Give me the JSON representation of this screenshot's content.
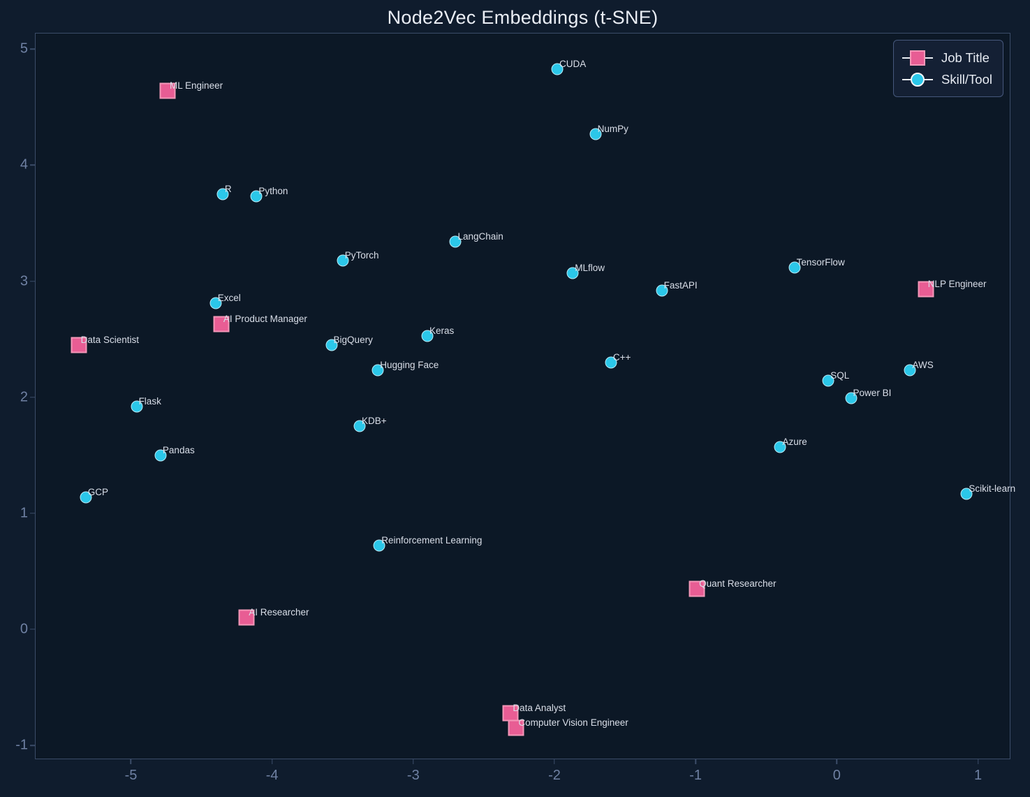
{
  "figure": {
    "title": "Node2Vec Embeddings (t-SNE)"
  },
  "legend": {
    "items": [
      {
        "label": "Job Title",
        "marker": "square-marker-icon"
      },
      {
        "label": "Skill/Tool",
        "marker": "circle-marker-icon"
      }
    ]
  },
  "colors": {
    "figure_background": "#0f1c2d",
    "axes_background": "#0c1826",
    "spine": "#3b4c68",
    "tick_label": "#6f81a3",
    "point_label": "#d9dee8",
    "job_title_fill": "#e85d94",
    "job_title_edge": "#f59ab9",
    "skill_fill": "#2bc7e9",
    "skill_edge": "#dff4fa"
  },
  "chart_data": {
    "type": "scatter",
    "title": "Node2Vec Embeddings (t-SNE)",
    "xlabel": "",
    "ylabel": "",
    "xlim": [
      -5.68,
      1.23
    ],
    "ylim": [
      -1.12,
      5.14
    ],
    "x_ticks": [
      -5,
      -4,
      -3,
      -2,
      -1,
      0,
      1
    ],
    "y_ticks": [
      -1,
      0,
      1,
      2,
      3,
      4,
      5
    ],
    "grid": false,
    "legend_position": "upper right",
    "series": [
      {
        "name": "Job Title",
        "marker": "square",
        "color": "#e85d94",
        "points": [
          {
            "label": "ML Engineer",
            "x": -4.74,
            "y": 4.64
          },
          {
            "label": "NLP Engineer",
            "x": 0.63,
            "y": 2.93
          },
          {
            "label": "AI Product Manager",
            "x": -4.36,
            "y": 2.63
          },
          {
            "label": "Data Scientist",
            "x": -5.37,
            "y": 2.45
          },
          {
            "label": "Quant Researcher",
            "x": -0.99,
            "y": 0.35
          },
          {
            "label": "AI Researcher",
            "x": -4.18,
            "y": 0.1
          },
          {
            "label": "Data Analyst",
            "x": -2.31,
            "y": -0.72
          },
          {
            "label": "Computer Vision Engineer",
            "x": -2.27,
            "y": -0.85
          }
        ]
      },
      {
        "name": "Skill/Tool",
        "marker": "circle",
        "color": "#2bc7e9",
        "points": [
          {
            "label": "CUDA",
            "x": -1.98,
            "y": 4.83
          },
          {
            "label": "NumPy",
            "x": -1.71,
            "y": 4.27
          },
          {
            "label": "R",
            "x": -4.35,
            "y": 3.75
          },
          {
            "label": "Python",
            "x": -4.11,
            "y": 3.73
          },
          {
            "label": "LangChain",
            "x": -2.7,
            "y": 3.34
          },
          {
            "label": "PyTorch",
            "x": -3.5,
            "y": 3.18
          },
          {
            "label": "TensorFlow",
            "x": -0.3,
            "y": 3.12
          },
          {
            "label": "MLflow",
            "x": -1.87,
            "y": 3.07
          },
          {
            "label": "FastAPI",
            "x": -1.24,
            "y": 2.92
          },
          {
            "label": "Excel",
            "x": -4.4,
            "y": 2.81
          },
          {
            "label": "Keras",
            "x": -2.9,
            "y": 2.53
          },
          {
            "label": "BigQuery",
            "x": -3.58,
            "y": 2.45
          },
          {
            "label": "C++",
            "x": -1.6,
            "y": 2.3
          },
          {
            "label": "Hugging Face",
            "x": -3.25,
            "y": 2.23
          },
          {
            "label": "AWS",
            "x": 0.52,
            "y": 2.23
          },
          {
            "label": "SQL",
            "x": -0.06,
            "y": 2.14
          },
          {
            "label": "Power BI",
            "x": 0.1,
            "y": 1.99
          },
          {
            "label": "Flask",
            "x": -4.96,
            "y": 1.92
          },
          {
            "label": "KDB+",
            "x": -3.38,
            "y": 1.75
          },
          {
            "label": "Azure",
            "x": -0.4,
            "y": 1.57
          },
          {
            "label": "Pandas",
            "x": -4.79,
            "y": 1.5
          },
          {
            "label": "GCP",
            "x": -5.32,
            "y": 1.14
          },
          {
            "label": "Scikit-learn",
            "x": 0.92,
            "y": 1.17
          },
          {
            "label": "Reinforcement Learning",
            "x": -3.24,
            "y": 0.72
          }
        ]
      }
    ]
  }
}
